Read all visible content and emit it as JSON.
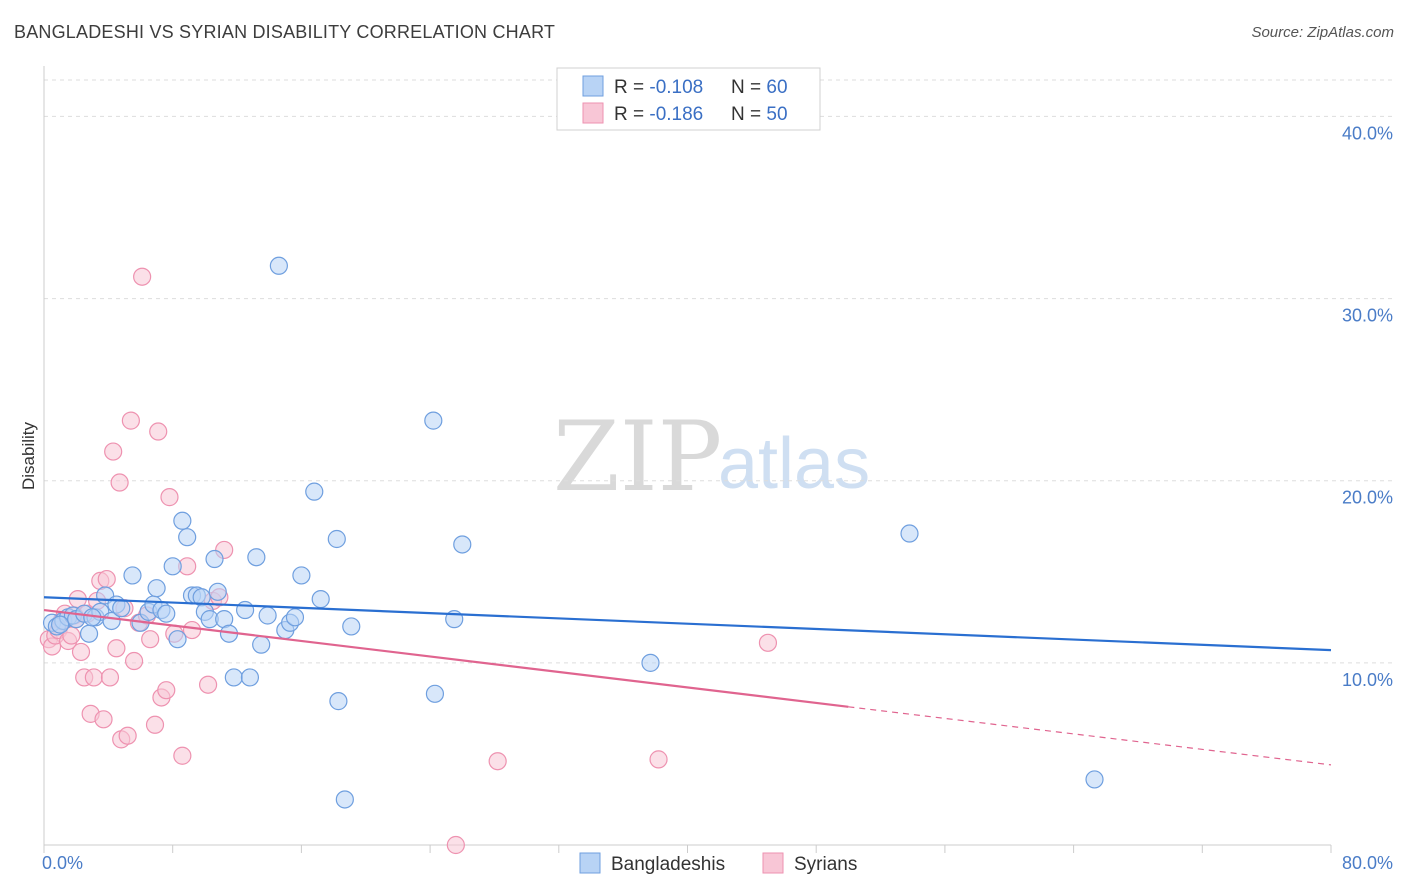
{
  "title": "BANGLADESHI VS SYRIAN DISABILITY CORRELATION CHART",
  "source": "Source: ZipAtlas.com",
  "watermark": {
    "zip": "ZIP",
    "atlas": "atlas"
  },
  "colors": {
    "blue_fill": "#b8d3f5",
    "blue_stroke": "#6f9fdf",
    "blue_line": "#2a6fd1",
    "pink_fill": "#f8c6d6",
    "pink_stroke": "#ee92b0",
    "pink_line": "#e0648f",
    "grid": "#dddddd",
    "axis_label": "#4a7cc7"
  },
  "legend": {
    "rows": [
      {
        "r_label": "R = ",
        "r_value": "-0.108",
        "n_label": "N = ",
        "n_value": "60"
      },
      {
        "r_label": "R = ",
        "r_value": "-0.186",
        "n_label": "N = ",
        "n_value": "50"
      }
    ]
  },
  "chart_data": {
    "type": "scatter",
    "title": "BANGLADESHI VS SYRIAN DISABILITY CORRELATION CHART",
    "xlabel": "",
    "ylabel": "Disability",
    "xlim": [
      0,
      80
    ],
    "ylim": [
      0,
      42
    ],
    "x_tick_labels": [
      "0.0%",
      "80.0%"
    ],
    "y_ticks": [
      10,
      20,
      30,
      40
    ],
    "y_tick_labels": [
      "10.0%",
      "20.0%",
      "30.0%",
      "40.0%"
    ],
    "series": [
      {
        "name": "Bangladeshis",
        "r": -0.108,
        "n": 60,
        "trend": {
          "x0": 0,
          "y0": 13.6,
          "x1": 80,
          "y1": 10.7,
          "solid_until": 80
        },
        "points": [
          [
            0.5,
            12.2
          ],
          [
            0.8,
            12.0
          ],
          [
            1.2,
            12.3
          ],
          [
            1.5,
            12.5
          ],
          [
            1.8,
            12.6
          ],
          [
            2.0,
            12.4
          ],
          [
            2.5,
            12.7
          ],
          [
            2.8,
            11.6
          ],
          [
            3.2,
            12.5
          ],
          [
            3.5,
            12.8
          ],
          [
            3.8,
            13.7
          ],
          [
            4.2,
            12.3
          ],
          [
            4.5,
            13.2
          ],
          [
            4.8,
            13.0
          ],
          [
            5.5,
            14.8
          ],
          [
            6.0,
            12.2
          ],
          [
            6.5,
            12.8
          ],
          [
            6.8,
            13.2
          ],
          [
            7.0,
            14.1
          ],
          [
            7.3,
            12.9
          ],
          [
            7.6,
            12.7
          ],
          [
            8.0,
            15.3
          ],
          [
            8.3,
            11.3
          ],
          [
            8.6,
            17.8
          ],
          [
            8.9,
            16.9
          ],
          [
            9.2,
            13.7
          ],
          [
            9.5,
            13.7
          ],
          [
            9.8,
            13.6
          ],
          [
            10.0,
            12.8
          ],
          [
            10.3,
            12.4
          ],
          [
            10.6,
            15.7
          ],
          [
            10.8,
            13.9
          ],
          [
            11.2,
            12.4
          ],
          [
            11.5,
            11.6
          ],
          [
            11.8,
            9.2
          ],
          [
            12.5,
            12.9
          ],
          [
            12.8,
            9.2
          ],
          [
            13.2,
            15.8
          ],
          [
            13.5,
            11.0
          ],
          [
            13.9,
            12.6
          ],
          [
            14.6,
            31.8
          ],
          [
            15.0,
            11.8
          ],
          [
            15.3,
            12.2
          ],
          [
            15.6,
            12.5
          ],
          [
            16.0,
            14.8
          ],
          [
            16.8,
            19.4
          ],
          [
            17.2,
            13.5
          ],
          [
            18.2,
            16.8
          ],
          [
            18.3,
            7.9
          ],
          [
            18.7,
            2.5
          ],
          [
            19.1,
            12.0
          ],
          [
            24.2,
            23.3
          ],
          [
            24.3,
            8.3
          ],
          [
            25.5,
            12.4
          ],
          [
            26.0,
            16.5
          ],
          [
            37.7,
            10.0
          ],
          [
            53.8,
            17.1
          ],
          [
            65.3,
            3.6
          ],
          [
            1.0,
            12.1
          ],
          [
            3.0,
            12.5
          ]
        ]
      },
      {
        "name": "Syrians",
        "r": -0.186,
        "n": 50,
        "trend": {
          "x0": 0,
          "y0": 12.9,
          "x1": 80,
          "y1": 4.4,
          "solid_until": 50
        },
        "points": [
          [
            0.3,
            11.3
          ],
          [
            0.5,
            10.9
          ],
          [
            0.7,
            11.5
          ],
          [
            0.9,
            11.8
          ],
          [
            1.1,
            12.3
          ],
          [
            1.3,
            12.7
          ],
          [
            1.5,
            11.2
          ],
          [
            1.7,
            11.5
          ],
          [
            1.9,
            12.6
          ],
          [
            2.1,
            13.5
          ],
          [
            2.3,
            10.6
          ],
          [
            2.5,
            9.2
          ],
          [
            2.7,
            12.7
          ],
          [
            2.9,
            7.2
          ],
          [
            3.1,
            9.2
          ],
          [
            3.3,
            13.4
          ],
          [
            3.5,
            14.5
          ],
          [
            3.7,
            6.9
          ],
          [
            3.9,
            14.6
          ],
          [
            4.1,
            9.2
          ],
          [
            4.3,
            21.6
          ],
          [
            4.5,
            10.8
          ],
          [
            4.7,
            19.9
          ],
          [
            4.8,
            5.8
          ],
          [
            5.0,
            13.0
          ],
          [
            5.2,
            6.0
          ],
          [
            5.4,
            23.3
          ],
          [
            5.6,
            10.1
          ],
          [
            5.9,
            12.2
          ],
          [
            6.1,
            31.2
          ],
          [
            6.4,
            12.6
          ],
          [
            6.6,
            11.3
          ],
          [
            6.9,
            6.6
          ],
          [
            7.1,
            22.7
          ],
          [
            7.3,
            8.1
          ],
          [
            7.6,
            8.5
          ],
          [
            7.8,
            19.1
          ],
          [
            8.1,
            11.6
          ],
          [
            8.6,
            4.9
          ],
          [
            8.9,
            15.3
          ],
          [
            9.2,
            11.8
          ],
          [
            10.2,
            8.8
          ],
          [
            10.5,
            13.4
          ],
          [
            10.9,
            13.6
          ],
          [
            11.2,
            16.2
          ],
          [
            25.6,
            0.0
          ],
          [
            28.2,
            4.6
          ],
          [
            38.2,
            4.7
          ],
          [
            45.0,
            11.1
          ],
          [
            2.0,
            12.4
          ]
        ]
      }
    ]
  },
  "bottom_legend": [
    {
      "label": "Bangladeshis"
    },
    {
      "label": "Syrians"
    }
  ]
}
